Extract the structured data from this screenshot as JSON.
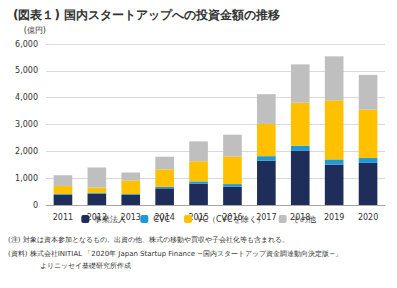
{
  "chart_data": {
    "type": "bar",
    "title": "(図表１) 国内スタートアップへの投資金額の推移",
    "y_label": "(億円)",
    "categories": [
      "2011",
      "2012",
      "2013",
      "2014",
      "2015",
      "2016",
      "2017",
      "2018",
      "2019",
      "2020"
    ],
    "series": [
      {
        "name": "事業法人",
        "color": "#1f2d5a",
        "values": [
          380,
          420,
          380,
          620,
          800,
          680,
          1650,
          2030,
          1500,
          1570
        ]
      },
      {
        "name": "CVC",
        "color": "#1e9ad6",
        "values": [
          30,
          30,
          30,
          60,
          80,
          100,
          170,
          180,
          200,
          180
        ]
      },
      {
        "name": "VC（CVCを除く）",
        "color": "#ffc000",
        "values": [
          300,
          200,
          500,
          650,
          750,
          1030,
          1200,
          1600,
          2200,
          1800
        ]
      },
      {
        "name": "その他",
        "color": "#bfbfbf",
        "values": [
          400,
          750,
          300,
          470,
          740,
          810,
          1110,
          1430,
          1640,
          1300
        ]
      }
    ],
    "ylim": [
      0,
      6000
    ],
    "yticks": [
      0,
      {
        "value": 1000,
        "label": "1,000"
      },
      {
        "value": 2000,
        "label": "2,000"
      },
      {
        "value": 3000,
        "label": "3,000"
      },
      {
        "value": 4000,
        "label": "4,000"
      },
      {
        "value": 5000,
        "label": "5,000"
      },
      {
        "value": 6000,
        "label": "6,000"
      }
    ],
    "stacked": true,
    "grid": true,
    "legend": "bottom",
    "annotations": [
      "(注) 対象は資本参加となるもの。出資の他、株式の移動や買収や子会社化等も含まれる。",
      "(資料) 株式会社INITIAL 「2020年 Japan Startup Finance −国内スタートアップ資金調達動向決定版−」",
      "よりニッセイ基礎研究所作成"
    ]
  }
}
